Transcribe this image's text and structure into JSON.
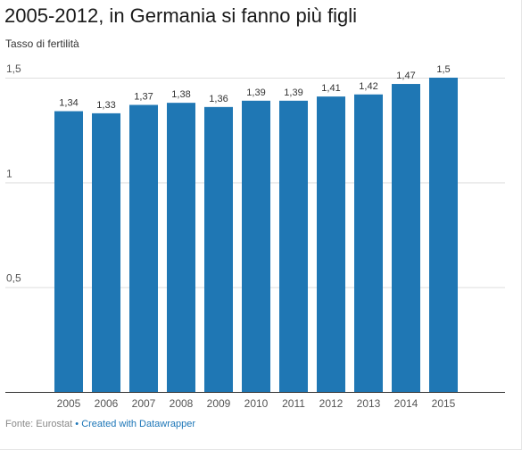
{
  "chart_data": {
    "type": "bar",
    "title": "2005-2012, in Germania si fanno più figli",
    "ylabel": "Tasso di fertilità",
    "categories": [
      "2005",
      "2006",
      "2007",
      "2008",
      "2009",
      "2010",
      "2011",
      "2012",
      "2013",
      "2014",
      "2015"
    ],
    "values": [
      1.34,
      1.33,
      1.37,
      1.38,
      1.36,
      1.39,
      1.39,
      1.41,
      1.42,
      1.47,
      1.5
    ],
    "value_labels": [
      "1,34",
      "1,33",
      "1,37",
      "1,38",
      "1,36",
      "1,39",
      "1,39",
      "1,41",
      "1,42",
      "1,47",
      "1,5"
    ],
    "ylim": [
      0,
      1.5
    ],
    "yticks": [
      {
        "value": 0.5,
        "label": "0,5"
      },
      {
        "value": 1,
        "label": "1"
      },
      {
        "value": 1.5,
        "label": "1,5"
      }
    ],
    "grid": true,
    "bar_color": "#1f77b4"
  },
  "footer": {
    "source": "Fonte: Eurostat",
    "separator": "•",
    "credit": "Created with Datawrapper"
  }
}
